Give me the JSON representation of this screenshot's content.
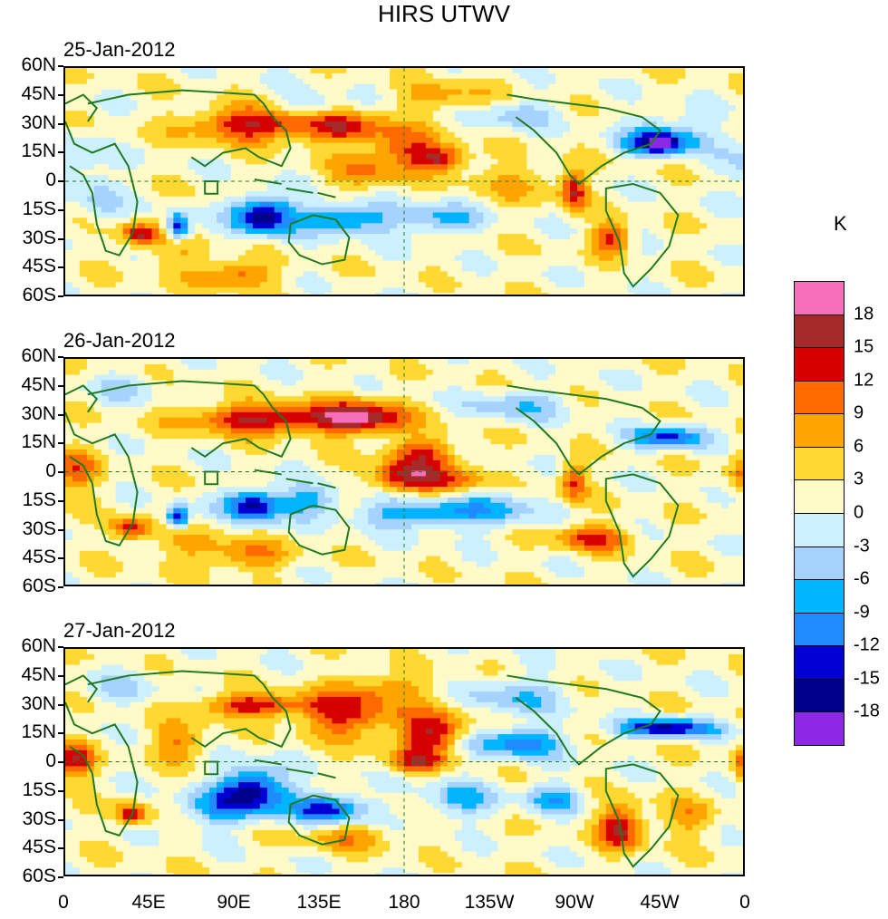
{
  "title": "HIRS UTWV",
  "unit": "K",
  "panels": [
    {
      "date": "25-Jan-2012"
    },
    {
      "date": "26-Jan-2012"
    },
    {
      "date": "27-Jan-2012"
    }
  ],
  "lat_labels": [
    "60N",
    "45N",
    "30N",
    "15N",
    "0",
    "15S",
    "30S",
    "45S",
    "60S"
  ],
  "lon_labels": [
    "0",
    "45E",
    "90E",
    "135E",
    "180",
    "135W",
    "90W",
    "45W",
    "0"
  ],
  "colorbar": {
    "labels": [
      "18",
      "15",
      "12",
      "9",
      "6",
      "3",
      "0",
      "-3",
      "-6",
      "-9",
      "-12",
      "-15",
      "-18"
    ],
    "colors": [
      "#f66fba",
      "#a52a2a",
      "#d60000",
      "#ff6a00",
      "#ffa500",
      "#ffd932",
      "#fffac8",
      "#cdf0ff",
      "#a5d2ff",
      "#00b4ff",
      "#1e8cff",
      "#0000d2",
      "#00008c",
      "#8c28e6"
    ]
  },
  "chart_data": {
    "type": "heatmap",
    "title": "HIRS UTWV",
    "subplots": [
      "25-Jan-2012",
      "26-Jan-2012",
      "27-Jan-2012"
    ],
    "xlabel": "",
    "ylabel": "",
    "x_ticks": [
      "0",
      "45E",
      "90E",
      "135E",
      "180",
      "135W",
      "90W",
      "45W",
      "0"
    ],
    "y_ticks": [
      "60N",
      "45N",
      "30N",
      "15N",
      "0",
      "15S",
      "30S",
      "45S",
      "60S"
    ],
    "xlim": [
      0,
      360
    ],
    "ylim": [
      -60,
      60
    ],
    "color_levels": [
      -18,
      -15,
      -12,
      -9,
      -6,
      -3,
      0,
      3,
      6,
      9,
      12,
      15,
      18
    ],
    "units": "K"
  }
}
